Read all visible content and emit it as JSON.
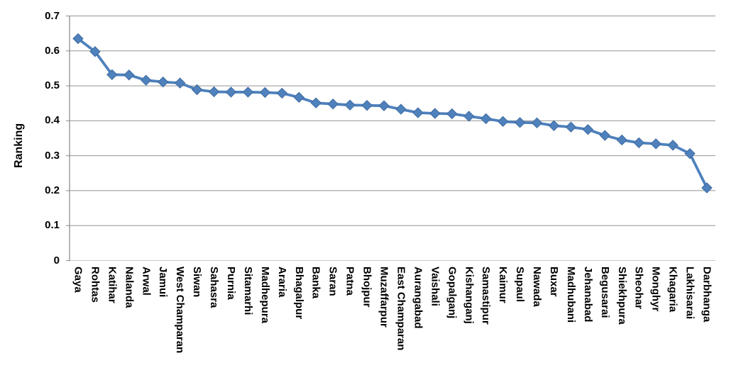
{
  "chart_data": {
    "type": "line",
    "title": "",
    "xlabel": "",
    "ylabel": "Ranking",
    "legend_position": "none",
    "grid": true,
    "marker": "diamond",
    "ylim": [
      0,
      0.7
    ],
    "ytick_labels": [
      "0",
      "0.1",
      "0.2",
      "0.3",
      "0.4",
      "0.5",
      "0.6",
      "0.7"
    ],
    "categories": [
      "Gaya",
      "Rohtas",
      "Katihar",
      "Nalanda",
      "Arwal",
      "Jamui",
      "West Champaran",
      "Siwan",
      "Sahasra",
      "Purnia",
      "Sitamarhi",
      "Madhepura",
      "Araria",
      "Bhagalpur",
      "Banka",
      "Saran",
      "Patna",
      "Bhojpur",
      "Muzaffarpur",
      "East Champaran",
      "Aurangabad",
      "Vaishali",
      "Gopalganj",
      "Kishanganj",
      "Samastipur",
      "Kaimur",
      "Supaul",
      "Nawada",
      "Buxar",
      "Madhubani",
      "Jehanabad",
      "Begusarai",
      "Shiekhpura",
      "Sheohar",
      "Monghyr",
      "Khagaria",
      "Lakhisarai",
      "Darbhanga"
    ],
    "series": [
      {
        "name": "Ranking",
        "values": [
          0.635,
          0.598,
          0.532,
          0.531,
          0.516,
          0.511,
          0.508,
          0.489,
          0.483,
          0.482,
          0.482,
          0.481,
          0.479,
          0.467,
          0.451,
          0.448,
          0.445,
          0.444,
          0.443,
          0.433,
          0.423,
          0.421,
          0.42,
          0.413,
          0.406,
          0.398,
          0.395,
          0.394,
          0.386,
          0.382,
          0.375,
          0.358,
          0.345,
          0.337,
          0.334,
          0.33,
          0.306,
          0.208
        ]
      }
    ],
    "colors": {
      "line": "#4F81BD",
      "marker_fill": "#4F81BD",
      "marker_edge": "#3E6B9F",
      "gridline": "#949494",
      "axis": "#8E8E8E",
      "baseline": "#C9C9C9",
      "text": "#000000"
    }
  }
}
